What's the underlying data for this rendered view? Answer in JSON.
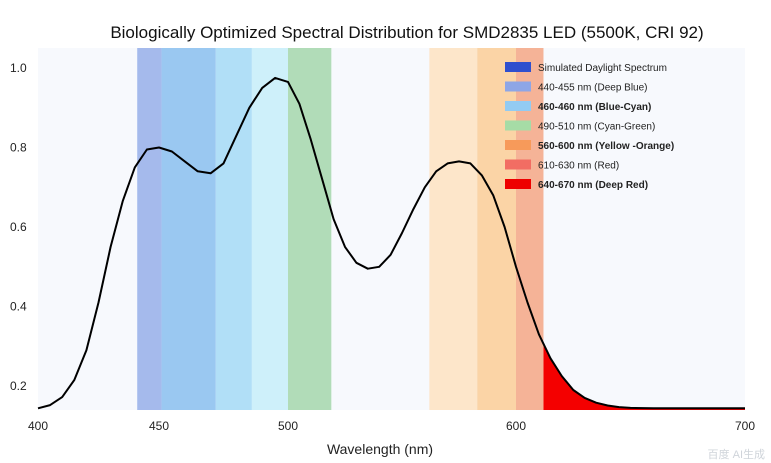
{
  "chart_data": {
    "type": "line",
    "title": "Biologically Optimized Spectral Distribution for SMD2835 LED (5500K, CRI 92)",
    "xlabel": "Wavelength (nm)",
    "ylabel": "",
    "xlim": [
      400,
      700
    ],
    "ylim": [
      0.15,
      1.07
    ],
    "x_ticks": [
      "400",
      "450",
      "500",
      "600",
      "700"
    ],
    "x_tick_values": [
      400,
      450,
      500,
      600,
      700
    ],
    "y_ticks": [
      "0.2",
      "0.4",
      "0.6",
      "0.8",
      "1.0"
    ],
    "y_tick_values": [
      0.2,
      0.4,
      0.6,
      0.8,
      1.0
    ],
    "series": [
      {
        "name": "Simulated Daylight Spectrum",
        "color": "#000000",
        "x": [
          400,
          405,
          410,
          415,
          420,
          425,
          430,
          435,
          440,
          445,
          450,
          455,
          460,
          465,
          470,
          475,
          480,
          485,
          490,
          495,
          500,
          505,
          510,
          515,
          520,
          525,
          530,
          535,
          540,
          545,
          550,
          555,
          560,
          565,
          570,
          575,
          580,
          585,
          590,
          595,
          600,
          605,
          610,
          615,
          620,
          625,
          630,
          635,
          640,
          645,
          650,
          660,
          670,
          680,
          690,
          700
        ],
        "y": [
          0.144,
          0.152,
          0.172,
          0.215,
          0.29,
          0.41,
          0.55,
          0.665,
          0.75,
          0.795,
          0.8,
          0.79,
          0.765,
          0.74,
          0.735,
          0.76,
          0.83,
          0.9,
          0.95,
          0.975,
          0.965,
          0.91,
          0.82,
          0.72,
          0.62,
          0.55,
          0.51,
          0.495,
          0.5,
          0.53,
          0.585,
          0.645,
          0.7,
          0.74,
          0.76,
          0.765,
          0.76,
          0.73,
          0.68,
          0.6,
          0.5,
          0.41,
          0.33,
          0.27,
          0.225,
          0.19,
          0.17,
          0.158,
          0.151,
          0.147,
          0.145,
          0.144,
          0.144,
          0.144,
          0.144,
          0.144
        ]
      }
    ],
    "bands": [
      {
        "label": "440-455 nm (Deep Blue)",
        "start": 441,
        "end": 451,
        "color": "#9bb3ea"
      },
      {
        "label": "",
        "start": 451,
        "end": 472,
        "color": "#8fc2f0"
      },
      {
        "label": "460-460 nm (Blue-Cyan)",
        "start": 472,
        "end": 486,
        "color": "#a9dcf6"
      },
      {
        "label": "",
        "start": 486,
        "end": 500,
        "color": "#c9eef9"
      },
      {
        "label": "490-510 nm (Cyan-Green)",
        "start": 500,
        "end": 519,
        "color": "#a9d8b0"
      },
      {
        "label": "560-600 nm (Yellow -Orange)",
        "start": 562,
        "end": 583,
        "color": "#fde3c4"
      },
      {
        "label": "",
        "start": 583,
        "end": 600,
        "color": "#fbcf9c"
      },
      {
        "label": "610-630 nm (Red)",
        "start": 600,
        "end": 612,
        "color": "#f4ab8c"
      }
    ],
    "deep_red_fill": {
      "label": "640-670 nm (Deep Red)",
      "start": 612,
      "end": 700,
      "color": "#f40000"
    },
    "legend": {
      "placement": "top-right",
      "entries": [
        {
          "label": "Simulated Daylight Spectrum",
          "color": "#2f4fce",
          "bold": false
        },
        {
          "label": "440-455 nm (Deep Blue)",
          "color": "#8ea6e6",
          "bold": false
        },
        {
          "label": "460-460 nm (Blue-Cyan)",
          "color": "#93cbf2",
          "bold": true
        },
        {
          "label": "490-510 nm (Cyan-Green)",
          "color": "#a6dca6",
          "bold": false
        },
        {
          "label": "560-600 nm (Yellow -Orange)",
          "color": "#f79a5a",
          "bold": true
        },
        {
          "label": "610-630 nm (Red)",
          "color": "#f26d63",
          "bold": false
        },
        {
          "label": "640-670 nm (Deep Red)",
          "color": "#ee0000",
          "bold": true
        }
      ]
    },
    "grid": false
  },
  "watermark": "百度 AI生成"
}
